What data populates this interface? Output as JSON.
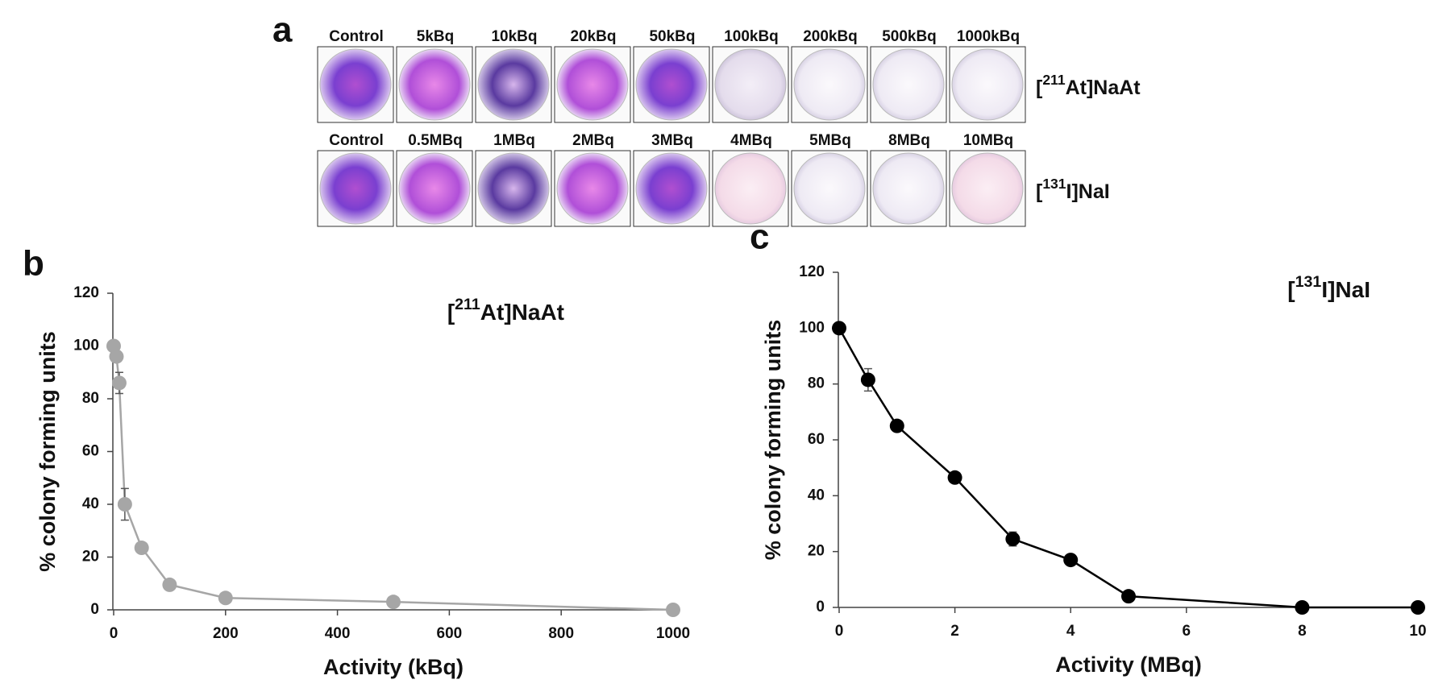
{
  "panel_a": {
    "label": "a",
    "row1": {
      "columns": [
        "Control",
        "5kBq",
        "10kBq",
        "20kBq",
        "50kBq",
        "100kBq",
        "200kBq",
        "500kBq",
        "1000kBq"
      ],
      "label_parts": [
        "[",
        "211",
        "At]NaAt"
      ]
    },
    "row2": {
      "columns": [
        "Control",
        "0.5MBq",
        "1MBq",
        "2MBq",
        "3MBq",
        "4MBq",
        "5MBq",
        "8MBq",
        "10MBq"
      ],
      "label_parts": [
        "[",
        "131",
        "I]NaI"
      ]
    }
  },
  "chart_data": [
    {
      "type": "line",
      "panel_label": "b",
      "title_parts": [
        "[",
        "211",
        "At]NaAt"
      ],
      "x_label": "Activity (kBq)",
      "y_label": "% colony forming units",
      "xlim": [
        0,
        1000
      ],
      "xticks": [
        0,
        200,
        400,
        600,
        800,
        1000
      ],
      "ylim": [
        0,
        120
      ],
      "yticks": [
        0,
        20,
        40,
        60,
        80,
        100,
        120
      ],
      "x": [
        0,
        5,
        10,
        20,
        50,
        100,
        200,
        500,
        1000
      ],
      "series": [
        {
          "color": "#a6a6a6",
          "values": [
            100,
            96,
            86,
            40,
            23.5,
            9.5,
            4.5,
            3,
            0
          ],
          "errors": [
            0,
            1,
            4,
            6,
            1.5,
            1,
            0.5,
            0.5,
            0
          ]
        }
      ]
    },
    {
      "type": "line",
      "panel_label": "c",
      "title_parts": [
        "[",
        "131",
        "I]NaI"
      ],
      "x_label": "Activity (MBq)",
      "y_label": "% colony forming units",
      "xlim": [
        0,
        10
      ],
      "xticks": [
        0,
        2,
        4,
        6,
        8,
        10
      ],
      "ylim": [
        0,
        120
      ],
      "yticks": [
        0,
        20,
        40,
        60,
        80,
        100,
        120
      ],
      "x": [
        0,
        0.5,
        1,
        2,
        3,
        4,
        5,
        8,
        10
      ],
      "series": [
        {
          "color": "#000000",
          "values": [
            100,
            81.5,
            65,
            46.5,
            24.5,
            17,
            4,
            0,
            0
          ],
          "errors": [
            0,
            4,
            2,
            1,
            2.5,
            1,
            0.5,
            0,
            0
          ]
        }
      ]
    }
  ]
}
